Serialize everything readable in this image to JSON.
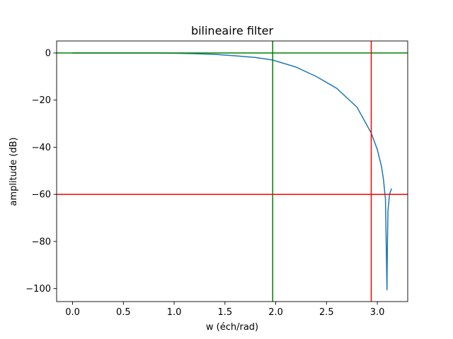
{
  "chart_data": {
    "type": "line",
    "title": "bilineaire filter",
    "xlabel": "w (éch/rad)",
    "ylabel": "amplitude (dB)",
    "xlim": [
      -0.157,
      3.299
    ],
    "ylim": [
      -105.5,
      5.1
    ],
    "xticks": [
      0.0,
      0.5,
      1.0,
      1.5,
      2.0,
      2.5,
      3.0
    ],
    "xtick_labels": [
      "0.0",
      "0.5",
      "1.0",
      "1.5",
      "2.0",
      "2.5",
      "3.0"
    ],
    "yticks": [
      0,
      -20,
      -40,
      -60,
      -80,
      -100
    ],
    "ytick_labels": [
      "0",
      "−20",
      "−40",
      "−60",
      "−80",
      "−100"
    ],
    "grid": false,
    "series": [
      {
        "color": "#1f77b4",
        "x": [
          0.0,
          0.2,
          0.4,
          0.6,
          0.8,
          1.0,
          1.2,
          1.4,
          1.6,
          1.8,
          1.97,
          2.2,
          2.4,
          2.6,
          2.8,
          2.94,
          3.0,
          3.04,
          3.06,
          3.08,
          3.095,
          3.1,
          3.105,
          3.12,
          3.14
        ],
        "y": [
          0.0,
          0.0,
          0.0,
          0.0,
          0.0,
          -0.1,
          -0.3,
          -0.6,
          -1.2,
          -1.9,
          -3.0,
          -6.0,
          -10.0,
          -15.0,
          -23.0,
          -34.0,
          -41.0,
          -48.0,
          -53.5,
          -62.0,
          -100.5,
          -79.0,
          -67.0,
          -60.0,
          -57.5
        ]
      }
    ],
    "reference_lines": [
      {
        "orientation": "horizontal",
        "value": 0,
        "color": "#008000"
      },
      {
        "orientation": "vertical",
        "value": 1.97,
        "color": "#008000"
      },
      {
        "orientation": "horizontal",
        "value": -60,
        "color": "#ff0000"
      },
      {
        "orientation": "vertical",
        "value": 2.94,
        "color": "#ff0000"
      }
    ]
  }
}
